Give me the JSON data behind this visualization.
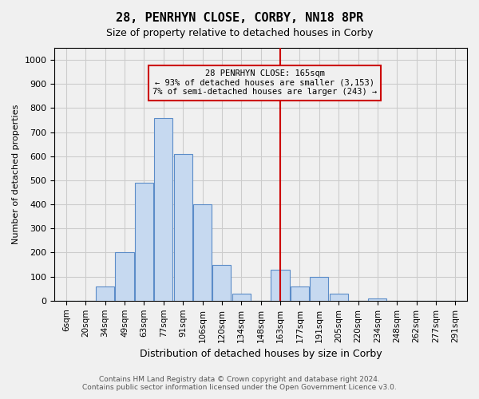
{
  "title": "28, PENRHYN CLOSE, CORBY, NN18 8PR",
  "subtitle": "Size of property relative to detached houses in Corby",
  "xlabel": "Distribution of detached houses by size in Corby",
  "ylabel": "Number of detached properties",
  "footer_line1": "Contains HM Land Registry data © Crown copyright and database right 2024.",
  "footer_line2": "Contains public sector information licensed under the Open Government Licence v3.0.",
  "annotation_title": "28 PENRHYN CLOSE: 165sqm",
  "annotation_line1": "← 93% of detached houses are smaller (3,153)",
  "annotation_line2": "7% of semi-detached houses are larger (243) →",
  "bar_labels": [
    "6sqm",
    "20sqm",
    "34sqm",
    "49sqm",
    "63sqm",
    "77sqm",
    "91sqm",
    "106sqm",
    "120sqm",
    "134sqm",
    "148sqm",
    "163sqm",
    "177sqm",
    "191sqm",
    "205sqm",
    "220sqm",
    "234sqm",
    "248sqm",
    "262sqm",
    "277sqm",
    "291sqm"
  ],
  "bar_values": [
    0,
    0,
    60,
    200,
    490,
    760,
    610,
    400,
    150,
    30,
    0,
    130,
    60,
    100,
    30,
    0,
    10,
    0,
    0,
    0,
    0
  ],
  "bar_color": "#c6d9f0",
  "bar_edge_color": "#5b8cc8",
  "vline_color": "#cc0000",
  "vline_x": 11,
  "ylim": [
    0,
    1050
  ],
  "yticks": [
    0,
    100,
    200,
    300,
    400,
    500,
    600,
    700,
    800,
    900,
    1000
  ],
  "grid_color": "#cccccc",
  "annotation_box_color": "#cc0000",
  "bg_color": "#f0f0f0"
}
